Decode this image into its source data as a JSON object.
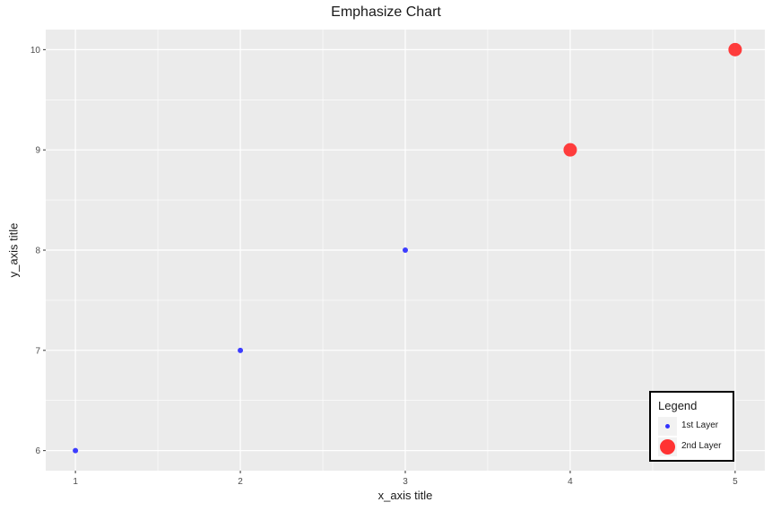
{
  "chart_data": {
    "type": "scatter",
    "title": "Emphasize Chart",
    "xlabel": "x_axis title",
    "ylabel": "y_axis title",
    "xlim": [
      0.82,
      5.18
    ],
    "ylim": [
      5.8,
      10.2
    ],
    "x_ticks": [
      "1",
      "2",
      "3",
      "4",
      "5"
    ],
    "y_ticks": [
      "6",
      "7",
      "8",
      "9",
      "10"
    ],
    "grid": true,
    "legend_position": "bottom-right",
    "legend_title": "Legend",
    "series": [
      {
        "name": "1st Layer",
        "color": "#3333ff",
        "marker": "small-circle",
        "points": [
          {
            "x": 1,
            "y": 6
          },
          {
            "x": 2,
            "y": 7
          },
          {
            "x": 3,
            "y": 8
          }
        ]
      },
      {
        "name": "2nd Layer",
        "color": "#ff3333",
        "marker": "large-circle",
        "points": [
          {
            "x": 4,
            "y": 9
          },
          {
            "x": 5,
            "y": 10
          }
        ]
      }
    ]
  }
}
